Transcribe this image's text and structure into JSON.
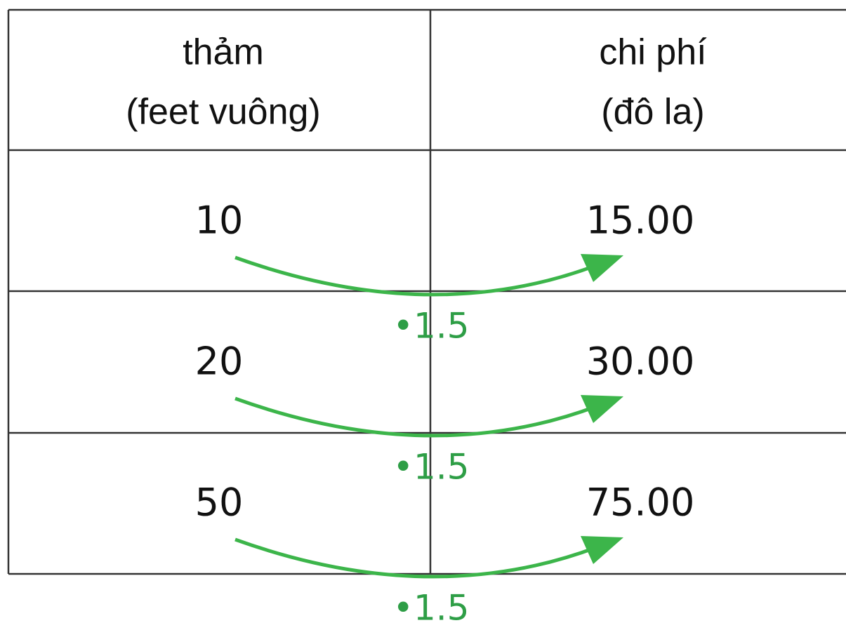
{
  "table": {
    "header": [
      [
        "thảm",
        "(feet vuông)"
      ],
      [
        "chi phí",
        "(đô la)"
      ]
    ],
    "rows": [
      [
        "10",
        "15.00"
      ],
      [
        "20",
        "30.00"
      ],
      [
        "50",
        "75.00"
      ]
    ]
  },
  "arrows": [
    {
      "label": "•1.5"
    },
    {
      "label": "•1.5"
    },
    {
      "label": "•1.5"
    }
  ]
}
